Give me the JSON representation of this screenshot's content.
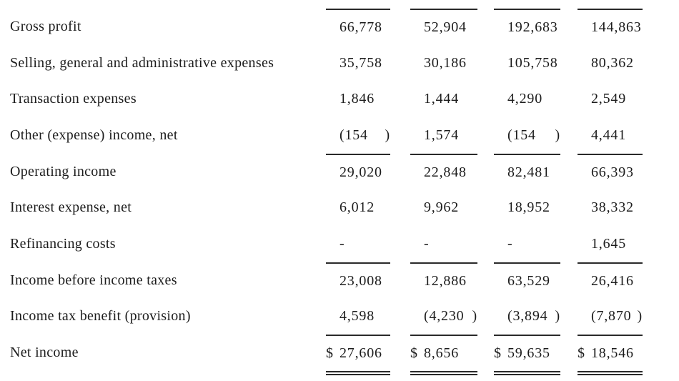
{
  "style": {
    "text_color": "#1c1c1c",
    "rule_color": "#2a2a2a",
    "background": "#ffffff"
  },
  "table": {
    "rows": [
      {
        "label": "Gross profit",
        "cells": [
          {
            "num": "66,778"
          },
          {
            "num": "52,904"
          },
          {
            "num": "192,683"
          },
          {
            "num": "144,863"
          }
        ]
      },
      {
        "label": "Selling, general and administrative expenses",
        "cells": [
          {
            "num": "35,758"
          },
          {
            "num": "30,186"
          },
          {
            "num": "105,758"
          },
          {
            "num": "80,362"
          }
        ]
      },
      {
        "label": "Transaction expenses",
        "cells": [
          {
            "num": "1,846"
          },
          {
            "num": "1,444"
          },
          {
            "num": "4,290"
          },
          {
            "num": "2,549"
          }
        ]
      },
      {
        "label": "Other (expense) income, net",
        "cells": [
          {
            "num": "(154",
            "paren": ")"
          },
          {
            "num": "1,574"
          },
          {
            "num": "(154",
            "paren": ")"
          },
          {
            "num": "4,441"
          }
        ]
      },
      {
        "label": "Operating income",
        "cells": [
          {
            "num": "29,020"
          },
          {
            "num": "22,848"
          },
          {
            "num": "82,481"
          },
          {
            "num": "66,393"
          }
        ]
      },
      {
        "label": "Interest expense, net",
        "cells": [
          {
            "num": "6,012"
          },
          {
            "num": "9,962"
          },
          {
            "num": "18,952"
          },
          {
            "num": "38,332"
          }
        ]
      },
      {
        "label": "Refinancing costs",
        "cells": [
          {
            "num": "-"
          },
          {
            "num": "-"
          },
          {
            "num": "-"
          },
          {
            "num": "1,645"
          }
        ]
      },
      {
        "label": "Income before income taxes",
        "cells": [
          {
            "num": "23,008"
          },
          {
            "num": "12,886"
          },
          {
            "num": "63,529"
          },
          {
            "num": "26,416"
          }
        ]
      },
      {
        "label": "Income tax benefit (provision)",
        "cells": [
          {
            "num": "4,598"
          },
          {
            "num": "(4,230",
            "paren": ")"
          },
          {
            "num": "(3,894",
            "paren": ")"
          },
          {
            "num": "(7,870",
            "paren": ")"
          }
        ]
      },
      {
        "label": "Net income",
        "cells": [
          {
            "cur": "$",
            "num": "27,606"
          },
          {
            "cur": "$",
            "num": "8,656"
          },
          {
            "cur": "$",
            "num": "59,635"
          },
          {
            "cur": "$",
            "num": "18,546"
          }
        ]
      }
    ]
  }
}
